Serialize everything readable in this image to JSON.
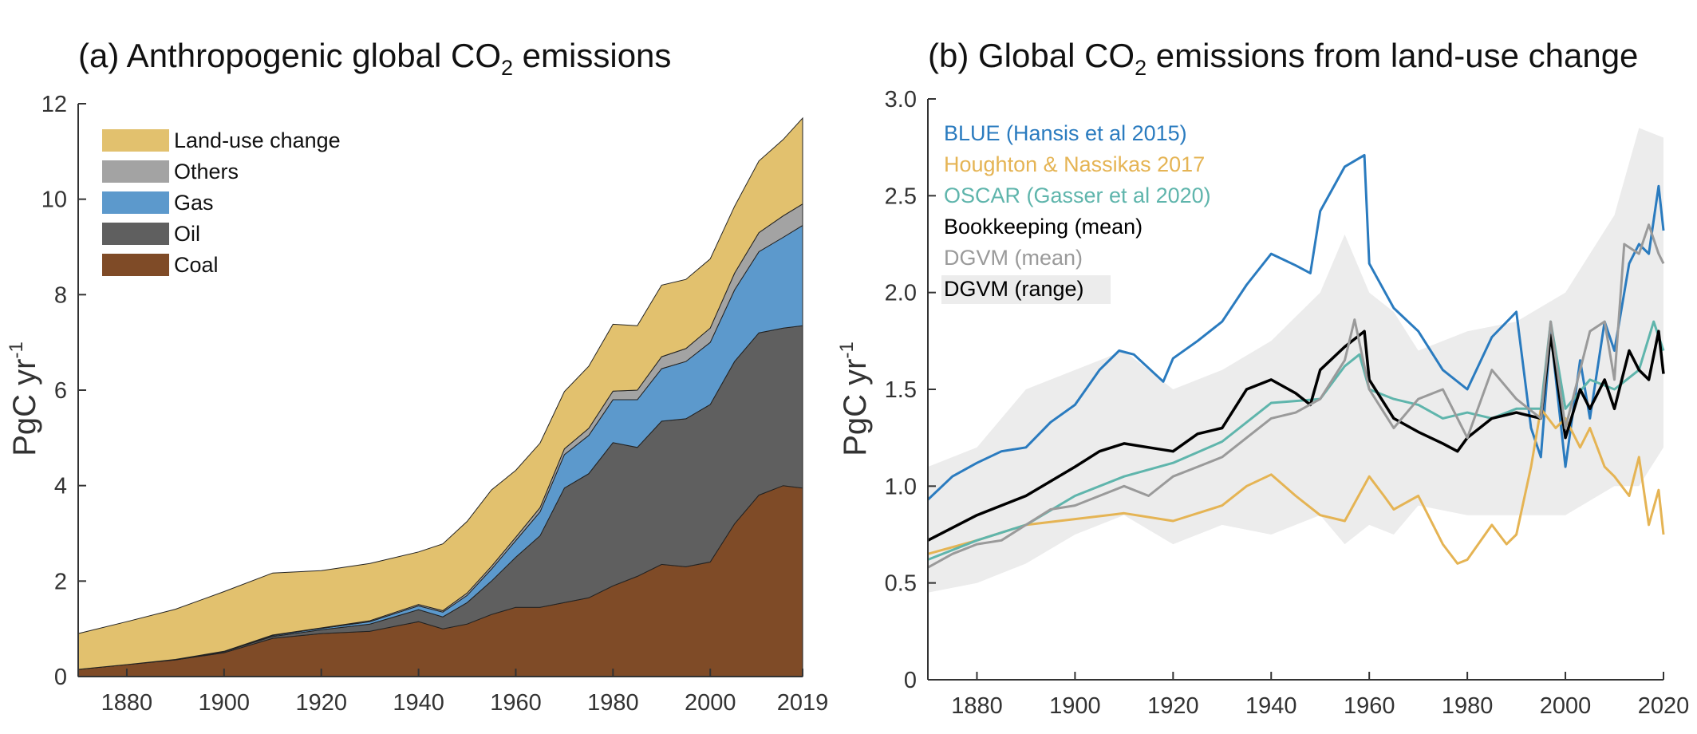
{
  "chart_data": [
    {
      "type": "area",
      "title_prefix": "(a) Anthropogenic global CO",
      "title_sub": "2",
      "title_suffix": " emissions",
      "ylabel_main": "PgC yr",
      "ylabel_sup": "-1",
      "xlim": [
        1870,
        2019
      ],
      "ylim": [
        0,
        12
      ],
      "xticks": [
        1880,
        1900,
        1920,
        1940,
        1960,
        1980,
        2000,
        2019
      ],
      "yticks": [
        0,
        2,
        4,
        6,
        8,
        10,
        12
      ],
      "legend_position": "top-left",
      "stack_order": [
        "Coal",
        "Oil",
        "Gas",
        "Others",
        "Land-use change"
      ],
      "legend_order": [
        "Land-use change",
        "Others",
        "Gas",
        "Oil",
        "Coal"
      ],
      "x": [
        1870,
        1880,
        1890,
        1900,
        1910,
        1920,
        1930,
        1940,
        1945,
        1950,
        1955,
        1960,
        1965,
        1970,
        1975,
        1980,
        1985,
        1990,
        1995,
        2000,
        2005,
        2010,
        2015,
        2019
      ],
      "series": [
        {
          "name": "Coal",
          "color": "#7f4b27",
          "values": [
            0.15,
            0.25,
            0.35,
            0.5,
            0.8,
            0.9,
            0.95,
            1.15,
            1.0,
            1.1,
            1.3,
            1.45,
            1.45,
            1.55,
            1.65,
            1.9,
            2.1,
            2.35,
            2.3,
            2.4,
            3.2,
            3.8,
            4.0,
            3.95
          ]
        },
        {
          "name": "Oil",
          "color": "#5f5f5f",
          "values": [
            0,
            0,
            0.01,
            0.02,
            0.04,
            0.08,
            0.15,
            0.25,
            0.25,
            0.45,
            0.7,
            1.05,
            1.5,
            2.4,
            2.6,
            3.0,
            2.7,
            3.0,
            3.1,
            3.3,
            3.4,
            3.4,
            3.3,
            3.4
          ]
        },
        {
          "name": "Gas",
          "color": "#5c99cc",
          "values": [
            0,
            0,
            0,
            0.01,
            0.02,
            0.03,
            0.05,
            0.08,
            0.1,
            0.15,
            0.25,
            0.35,
            0.5,
            0.7,
            0.8,
            0.9,
            1.0,
            1.1,
            1.2,
            1.3,
            1.5,
            1.7,
            1.9,
            2.1
          ]
        },
        {
          "name": "Others",
          "color": "#a3a3a3",
          "values": [
            0,
            0,
            0,
            0,
            0.01,
            0.01,
            0.02,
            0.03,
            0.03,
            0.05,
            0.06,
            0.07,
            0.09,
            0.12,
            0.15,
            0.18,
            0.2,
            0.25,
            0.27,
            0.3,
            0.35,
            0.4,
            0.45,
            0.45
          ]
        },
        {
          "name": "Land-use change",
          "color": "#e2c16e",
          "values": [
            0.75,
            0.9,
            1.05,
            1.25,
            1.3,
            1.2,
            1.2,
            1.1,
            1.4,
            1.5,
            1.6,
            1.4,
            1.35,
            1.2,
            1.3,
            1.4,
            1.35,
            1.5,
            1.45,
            1.45,
            1.4,
            1.5,
            1.6,
            1.8
          ]
        }
      ]
    },
    {
      "type": "line",
      "title_prefix": "(b) Global CO",
      "title_sub": "2",
      "title_suffix": " emissions from land-use change",
      "ylabel_main": "PgC yr",
      "ylabel_sup": "-1",
      "xlim": [
        1870,
        2020
      ],
      "ylim": [
        0,
        3.0
      ],
      "xticks": [
        1880,
        1900,
        1920,
        1940,
        1960,
        1980,
        2000,
        2020
      ],
      "yticks": [
        "0",
        "0.5",
        "1.0",
        "1.5",
        "2.0",
        "2.5",
        "3.0"
      ],
      "legend_position": "top-left",
      "range_band": {
        "name": "DGVM (range)",
        "color": "#ececec",
        "x": [
          1870,
          1880,
          1890,
          1900,
          1910,
          1920,
          1930,
          1940,
          1950,
          1955,
          1960,
          1965,
          1970,
          1980,
          1990,
          2000,
          2010,
          2015,
          2020
        ],
        "lower": [
          0.45,
          0.5,
          0.6,
          0.75,
          0.85,
          0.7,
          0.8,
          0.75,
          0.85,
          0.7,
          0.8,
          0.75,
          0.9,
          0.85,
          0.85,
          0.85,
          1.0,
          1.0,
          1.2
        ],
        "upper": [
          1.1,
          1.2,
          1.5,
          1.6,
          1.7,
          1.5,
          1.6,
          1.75,
          2.0,
          2.3,
          2.0,
          1.9,
          1.7,
          1.8,
          1.85,
          2.0,
          2.4,
          2.85,
          2.8
        ]
      },
      "series": [
        {
          "name": "BLUE (Hansis et al 2015)",
          "color": "#2a7bbf",
          "x": [
            1870,
            1875,
            1880,
            1885,
            1890,
            1895,
            1900,
            1905,
            1909,
            1912,
            1918,
            1920,
            1925,
            1930,
            1935,
            1940,
            1945,
            1948,
            1950,
            1955,
            1959,
            1960,
            1965,
            1970,
            1975,
            1980,
            1985,
            1990,
            1993,
            1995,
            1997,
            2000,
            2003,
            2005,
            2008,
            2010,
            2013,
            2015,
            2017,
            2019,
            2020
          ],
          "values": [
            0.93,
            1.05,
            1.12,
            1.18,
            1.2,
            1.33,
            1.42,
            1.6,
            1.7,
            1.68,
            1.54,
            1.66,
            1.75,
            1.85,
            2.04,
            2.2,
            2.14,
            2.1,
            2.42,
            2.65,
            2.71,
            2.15,
            1.92,
            1.8,
            1.6,
            1.5,
            1.77,
            1.9,
            1.3,
            1.15,
            1.8,
            1.1,
            1.65,
            1.35,
            1.85,
            1.7,
            2.15,
            2.25,
            2.2,
            2.55,
            2.32
          ]
        },
        {
          "name": "Houghton & Nassikas 2017",
          "color": "#e5b454",
          "x": [
            1870,
            1880,
            1890,
            1900,
            1910,
            1920,
            1930,
            1935,
            1940,
            1945,
            1950,
            1955,
            1960,
            1963,
            1965,
            1970,
            1975,
            1978,
            1980,
            1985,
            1988,
            1990,
            1993,
            1995,
            1998,
            2000,
            2003,
            2005,
            2008,
            2010,
            2013,
            2015,
            2017,
            2019,
            2020
          ],
          "values": [
            0.65,
            0.72,
            0.8,
            0.83,
            0.86,
            0.82,
            0.9,
            1.0,
            1.06,
            0.95,
            0.85,
            0.82,
            1.05,
            0.95,
            0.88,
            0.95,
            0.7,
            0.6,
            0.62,
            0.8,
            0.7,
            0.75,
            1.1,
            1.4,
            1.3,
            1.35,
            1.2,
            1.3,
            1.1,
            1.05,
            0.95,
            1.15,
            0.8,
            0.98,
            0.75
          ]
        },
        {
          "name": "OSCAR (Gasser et al 2020)",
          "color": "#5fb5ac",
          "x": [
            1870,
            1880,
            1890,
            1900,
            1910,
            1920,
            1930,
            1940,
            1945,
            1950,
            1955,
            1958,
            1960,
            1965,
            1970,
            1975,
            1980,
            1985,
            1990,
            1995,
            1997,
            2000,
            2005,
            2010,
            2015,
            2018,
            2020
          ],
          "values": [
            0.62,
            0.72,
            0.8,
            0.95,
            1.05,
            1.12,
            1.23,
            1.43,
            1.44,
            1.45,
            1.62,
            1.68,
            1.5,
            1.45,
            1.42,
            1.35,
            1.38,
            1.35,
            1.4,
            1.4,
            1.85,
            1.4,
            1.55,
            1.5,
            1.6,
            1.85,
            1.7
          ]
        },
        {
          "name": "Bookkeeping (mean)",
          "color": "#000000",
          "x": [
            1870,
            1880,
            1890,
            1900,
            1905,
            1910,
            1915,
            1920,
            1925,
            1930,
            1935,
            1940,
            1945,
            1948,
            1950,
            1955,
            1959,
            1960,
            1965,
            1970,
            1975,
            1978,
            1980,
            1985,
            1990,
            1995,
            1997,
            2000,
            2003,
            2005,
            2008,
            2010,
            2013,
            2015,
            2017,
            2019,
            2020
          ],
          "values": [
            0.72,
            0.85,
            0.95,
            1.1,
            1.18,
            1.22,
            1.2,
            1.18,
            1.27,
            1.3,
            1.5,
            1.55,
            1.48,
            1.42,
            1.6,
            1.72,
            1.8,
            1.55,
            1.35,
            1.28,
            1.22,
            1.18,
            1.25,
            1.35,
            1.38,
            1.35,
            1.78,
            1.25,
            1.5,
            1.4,
            1.55,
            1.4,
            1.7,
            1.6,
            1.55,
            1.8,
            1.58
          ]
        },
        {
          "name": "DGVM (mean)",
          "color": "#9a9a9a",
          "x": [
            1870,
            1875,
            1880,
            1885,
            1890,
            1895,
            1900,
            1905,
            1910,
            1915,
            1920,
            1925,
            1930,
            1935,
            1940,
            1945,
            1950,
            1955,
            1957,
            1960,
            1965,
            1970,
            1975,
            1980,
            1985,
            1990,
            1995,
            1997,
            2000,
            2003,
            2005,
            2008,
            2010,
            2012,
            2015,
            2017,
            2019,
            2020
          ],
          "values": [
            0.58,
            0.65,
            0.7,
            0.72,
            0.8,
            0.88,
            0.9,
            0.95,
            1.0,
            0.95,
            1.05,
            1.1,
            1.15,
            1.25,
            1.35,
            1.38,
            1.45,
            1.65,
            1.86,
            1.5,
            1.3,
            1.45,
            1.5,
            1.25,
            1.6,
            1.45,
            1.35,
            1.85,
            1.3,
            1.6,
            1.8,
            1.85,
            1.55,
            2.25,
            2.2,
            2.35,
            2.2,
            2.15
          ]
        }
      ],
      "legend_entries": [
        "BLUE (Hansis et al 2015)",
        "Houghton & Nassikas 2017",
        "OSCAR (Gasser et al 2020)",
        "Bookkeeping (mean)",
        "DGVM (mean)",
        "DGVM (range)"
      ]
    }
  ]
}
